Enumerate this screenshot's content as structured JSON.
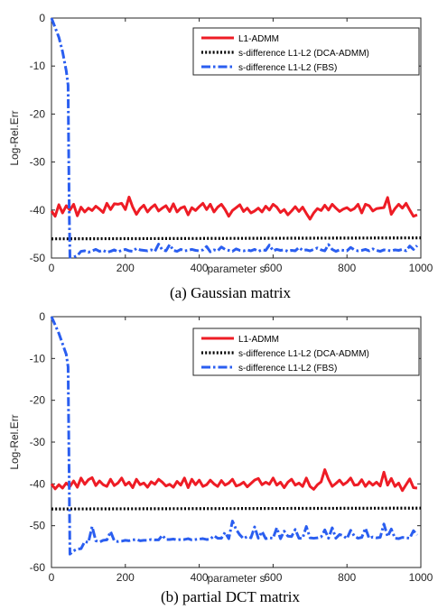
{
  "panels": [
    {
      "caption": "(a) Gaussian matrix",
      "chart_data": {
        "type": "line",
        "title": "",
        "xlabel": "parameter s",
        "ylabel": "Log-Rel.Err",
        "xlim": [
          0,
          1000
        ],
        "ylim": [
          -50,
          0
        ],
        "xticks": [
          0,
          200,
          400,
          600,
          800,
          1000
        ],
        "yticks": [
          0,
          -10,
          -20,
          -30,
          -40,
          -50
        ],
        "grid": false,
        "legend_position": "top-right",
        "colors": {
          "l1": "#ee1c25",
          "dca": "#000000",
          "fbs": "#2a5ef0"
        },
        "series": [
          {
            "name": "L1-ADMM",
            "x": [
              0,
              10,
              20,
              30,
              40,
              50,
              60,
              70,
              80,
              90,
              100,
              110,
              120,
              130,
              140,
              150,
              160,
              170,
              180,
              190,
              200,
              210,
              220,
              230,
              240,
              250,
              260,
              270,
              280,
              290,
              300,
              310,
              320,
              330,
              340,
              350,
              360,
              370,
              380,
              390,
              400,
              410,
              420,
              430,
              440,
              450,
              460,
              470,
              480,
              490,
              500,
              510,
              520,
              530,
              540,
              550,
              560,
              570,
              580,
              590,
              600,
              610,
              620,
              630,
              640,
              650,
              660,
              670,
              680,
              690,
              700,
              710,
              720,
              730,
              740,
              750,
              760,
              770,
              780,
              790,
              800,
              810,
              820,
              830,
              840,
              850,
              860,
              870,
              880,
              890,
              900,
              910,
              920,
              930,
              940,
              950,
              960,
              970,
              980,
              990
            ],
            "values": [
              -40.2,
              -41.3,
              -38.9,
              -40.6,
              -39.1,
              -40.0,
              -38.8,
              -41.2,
              -39.4,
              -40.4,
              -39.6,
              -40.1,
              -39.2,
              -39.8,
              -40.5,
              -38.6,
              -39.9,
              -38.7,
              -38.8,
              -38.6,
              -39.9,
              -37.3,
              -39.4,
              -40.9,
              -39.7,
              -39.0,
              -40.4,
              -39.5,
              -38.9,
              -40.2,
              -39.6,
              -39.1,
              -40.3,
              -38.7,
              -40.4,
              -39.6,
              -39.3,
              -41.0,
              -39.5,
              -40.1,
              -39.3,
              -38.6,
              -39.9,
              -38.8,
              -40.4,
              -39.4,
              -38.8,
              -39.9,
              -41.3,
              -40.1,
              -39.5,
              -38.9,
              -40.3,
              -39.6,
              -40.6,
              -40.2,
              -39.6,
              -40.4,
              -39.2,
              -40.0,
              -38.8,
              -39.4,
              -40.5,
              -39.9,
              -41.0,
              -40.2,
              -39.3,
              -40.3,
              -39.4,
              -40.7,
              -41.9,
              -40.6,
              -39.7,
              -40.1,
              -39.0,
              -40.0,
              -38.8,
              -39.6,
              -40.3,
              -39.8,
              -39.5,
              -40.1,
              -39.7,
              -38.8,
              -40.6,
              -38.8,
              -39.1,
              -40.2,
              -39.7,
              -39.6,
              -39.5,
              -37.4,
              -40.9,
              -39.7,
              -38.8,
              -39.6,
              -38.6,
              -40.0,
              -41.3,
              -41.0
            ]
          },
          {
            "name": "s-difference L1-L2 (DCA-ADMM)",
            "x": [
              0,
              1000
            ],
            "values": [
              -46.0,
              -45.8
            ]
          },
          {
            "name": "s-difference L1-L2 (FBS)",
            "x": [
              0,
              10,
              20,
              30,
              40,
              45,
              48,
              50,
              60,
              70,
              80,
              90,
              100,
              110,
              120,
              130,
              140,
              150,
              160,
              170,
              180,
              190,
              200,
              210,
              220,
              230,
              240,
              250,
              260,
              270,
              280,
              290,
              300,
              310,
              320,
              330,
              340,
              350,
              360,
              370,
              380,
              390,
              400,
              410,
              420,
              430,
              440,
              450,
              460,
              470,
              480,
              490,
              500,
              510,
              520,
              530,
              540,
              550,
              560,
              570,
              580,
              590,
              600,
              610,
              620,
              630,
              640,
              650,
              660,
              670,
              680,
              690,
              700,
              710,
              720,
              730,
              740,
              750,
              760,
              770,
              780,
              790,
              800,
              810,
              820,
              830,
              840,
              850,
              860,
              870,
              880,
              890,
              900,
              910,
              920,
              930,
              940,
              950,
              960,
              970,
              980,
              990
            ],
            "values": [
              0,
              -2,
              -4,
              -7,
              -11,
              -14,
              -40,
              -49.8,
              -49.8,
              -49.5,
              -48.6,
              -48.5,
              -48.8,
              -48.5,
              -48.2,
              -48.6,
              -48.4,
              -48.8,
              -48.6,
              -48.3,
              -48.7,
              -48.4,
              -48.2,
              -48.5,
              -48.6,
              -48.0,
              -48.3,
              -48.4,
              -48.5,
              -48.3,
              -48.6,
              -47.1,
              -48.3,
              -48.5,
              -47.2,
              -48.4,
              -48.6,
              -48.2,
              -48.5,
              -48.4,
              -48.2,
              -48.4,
              -48.5,
              -48.3,
              -47.6,
              -48.7,
              -48.3,
              -48.5,
              -47.7,
              -48.2,
              -48.4,
              -48.6,
              -48.1,
              -48.4,
              -48.5,
              -48.3,
              -48.5,
              -48.2,
              -48.6,
              -48.3,
              -48.4,
              -47.3,
              -48.5,
              -48.2,
              -48.4,
              -48.3,
              -48.6,
              -48.4,
              -48.5,
              -47.8,
              -48.4,
              -48.3,
              -48.5,
              -48.2,
              -47.9,
              -48.3,
              -48.5,
              -47.2,
              -48.2,
              -48.6,
              -48.3,
              -48.4,
              -48.5,
              -47.8,
              -48.3,
              -48.5,
              -48.4,
              -48.2,
              -48.5,
              -48.1,
              -48.4,
              -48.6,
              -48.3,
              -48.4,
              -48.5,
              -48.3,
              -48.4,
              -48.2,
              -48.5,
              -47.5,
              -48.2,
              -47.4
            ]
          }
        ]
      }
    },
    {
      "caption": "(b) partial DCT matrix",
      "chart_data": {
        "type": "line",
        "title": "",
        "xlabel": "parameter s",
        "ylabel": "Log-Rel.Err",
        "xlim": [
          0,
          1000
        ],
        "ylim": [
          -60,
          0
        ],
        "xticks": [
          0,
          200,
          400,
          600,
          800,
          1000
        ],
        "yticks": [
          0,
          -10,
          -20,
          -30,
          -40,
          -50,
          -60
        ],
        "grid": false,
        "legend_position": "top-right",
        "colors": {
          "l1": "#ee1c25",
          "dca": "#000000",
          "fbs": "#2a5ef0"
        },
        "series": [
          {
            "name": "L1-ADMM",
            "x": [
              0,
              10,
              20,
              30,
              40,
              50,
              60,
              70,
              80,
              90,
              100,
              110,
              120,
              130,
              140,
              150,
              160,
              170,
              180,
              190,
              200,
              210,
              220,
              230,
              240,
              250,
              260,
              270,
              280,
              290,
              300,
              310,
              320,
              330,
              340,
              350,
              360,
              370,
              380,
              390,
              400,
              410,
              420,
              430,
              440,
              450,
              460,
              470,
              480,
              490,
              500,
              510,
              520,
              530,
              540,
              550,
              560,
              570,
              580,
              590,
              600,
              610,
              620,
              630,
              640,
              650,
              660,
              670,
              680,
              690,
              700,
              710,
              720,
              730,
              740,
              750,
              760,
              770,
              780,
              790,
              800,
              810,
              820,
              830,
              840,
              850,
              860,
              870,
              880,
              890,
              900,
              910,
              920,
              930,
              940,
              950,
              960,
              970,
              980,
              990
            ],
            "values": [
              -40.0,
              -41.2,
              -40.2,
              -41.0,
              -39.8,
              -40.6,
              -39.3,
              -40.8,
              -38.6,
              -40.1,
              -39.0,
              -38.5,
              -40.4,
              -39.3,
              -40.2,
              -40.6,
              -38.9,
              -40.4,
              -39.8,
              -38.6,
              -40.3,
              -39.6,
              -40.9,
              -38.9,
              -40.2,
              -39.8,
              -40.8,
              -39.5,
              -40.1,
              -38.9,
              -39.6,
              -40.5,
              -40.1,
              -40.8,
              -39.4,
              -40.3,
              -38.6,
              -40.9,
              -38.9,
              -40.2,
              -39.1,
              -40.6,
              -40.2,
              -39.1,
              -40.0,
              -40.6,
              -39.2,
              -40.3,
              -39.8,
              -38.9,
              -40.5,
              -40.2,
              -39.6,
              -40.7,
              -39.9,
              -39.1,
              -38.7,
              -40.2,
              -39.6,
              -40.1,
              -38.6,
              -40.3,
              -39.6,
              -40.9,
              -39.6,
              -38.9,
              -40.3,
              -39.8,
              -40.6,
              -38.6,
              -40.6,
              -41.3,
              -40.2,
              -39.5,
              -36.6,
              -38.9,
              -40.6,
              -39.9,
              -39.1,
              -40.2,
              -39.6,
              -38.6,
              -40.3,
              -40.2,
              -39.0,
              -40.6,
              -39.5,
              -40.3,
              -39.6,
              -40.5,
              -37.2,
              -40.3,
              -38.7,
              -40.6,
              -39.8,
              -41.6,
              -40.2,
              -38.8,
              -40.9,
              -41.0
            ]
          },
          {
            "name": "s-difference L1-L2 (DCA-ADMM)",
            "x": [
              0,
              1000
            ],
            "values": [
              -46.0,
              -45.8
            ]
          },
          {
            "name": "s-difference L1-L2 (FBS)",
            "x": [
              0,
              10,
              20,
              30,
              40,
              45,
              48,
              50,
              60,
              70,
              80,
              90,
              100,
              110,
              120,
              130,
              140,
              150,
              160,
              170,
              180,
              190,
              200,
              210,
              220,
              230,
              240,
              250,
              260,
              270,
              280,
              290,
              300,
              310,
              320,
              330,
              340,
              350,
              360,
              370,
              380,
              390,
              400,
              410,
              420,
              430,
              440,
              450,
              460,
              470,
              480,
              490,
              500,
              510,
              520,
              530,
              540,
              550,
              560,
              570,
              580,
              590,
              600,
              610,
              620,
              630,
              640,
              650,
              660,
              670,
              680,
              690,
              700,
              710,
              720,
              730,
              740,
              750,
              760,
              770,
              780,
              790,
              800,
              810,
              820,
              830,
              840,
              850,
              860,
              870,
              880,
              890,
              900,
              910,
              920,
              930,
              940,
              950,
              960,
              970,
              980,
              990
            ],
            "values": [
              0,
              -2,
              -4,
              -6.5,
              -9,
              -12,
              -40,
              -56.8,
              -56.0,
              -55.6,
              -55.5,
              -53.8,
              -54.0,
              -50.2,
              -53.6,
              -53.9,
              -53.5,
              -53.4,
              -51.4,
              -53.6,
              -53.8,
              -53.7,
              -53.5,
              -53.6,
              -53.4,
              -53.3,
              -53.6,
              -53.5,
              -53.5,
              -53.3,
              -53.4,
              -53.4,
              -52.3,
              -53.3,
              -53.3,
              -53.2,
              -53.4,
              -53.3,
              -53.3,
              -53.1,
              -53.4,
              -53.3,
              -53.2,
              -53.1,
              -53.3,
              -53.2,
              -52.4,
              -53.0,
              -53.0,
              -51.6,
              -53.1,
              -48.9,
              -50.9,
              -52.2,
              -53.1,
              -52.6,
              -52.9,
              -50.3,
              -53.0,
              -51.4,
              -53.1,
              -52.9,
              -53.0,
              -50.5,
              -53.1,
              -51.3,
              -52.5,
              -52.6,
              -50.9,
              -53.0,
              -53.0,
              -50.2,
              -52.9,
              -53.0,
              -52.9,
              -52.7,
              -51.0,
              -53.0,
              -50.5,
              -53.0,
              -52.1,
              -52.4,
              -53.1,
              -51.1,
              -52.5,
              -53.0,
              -52.8,
              -50.6,
              -53.0,
              -52.7,
              -52.9,
              -52.8,
              -49.6,
              -52.6,
              -50.8,
              -53.0,
              -53.1,
              -52.8,
              -52.9,
              -53.0,
              -51.2,
              -52.2
            ]
          }
        ]
      }
    }
  ]
}
